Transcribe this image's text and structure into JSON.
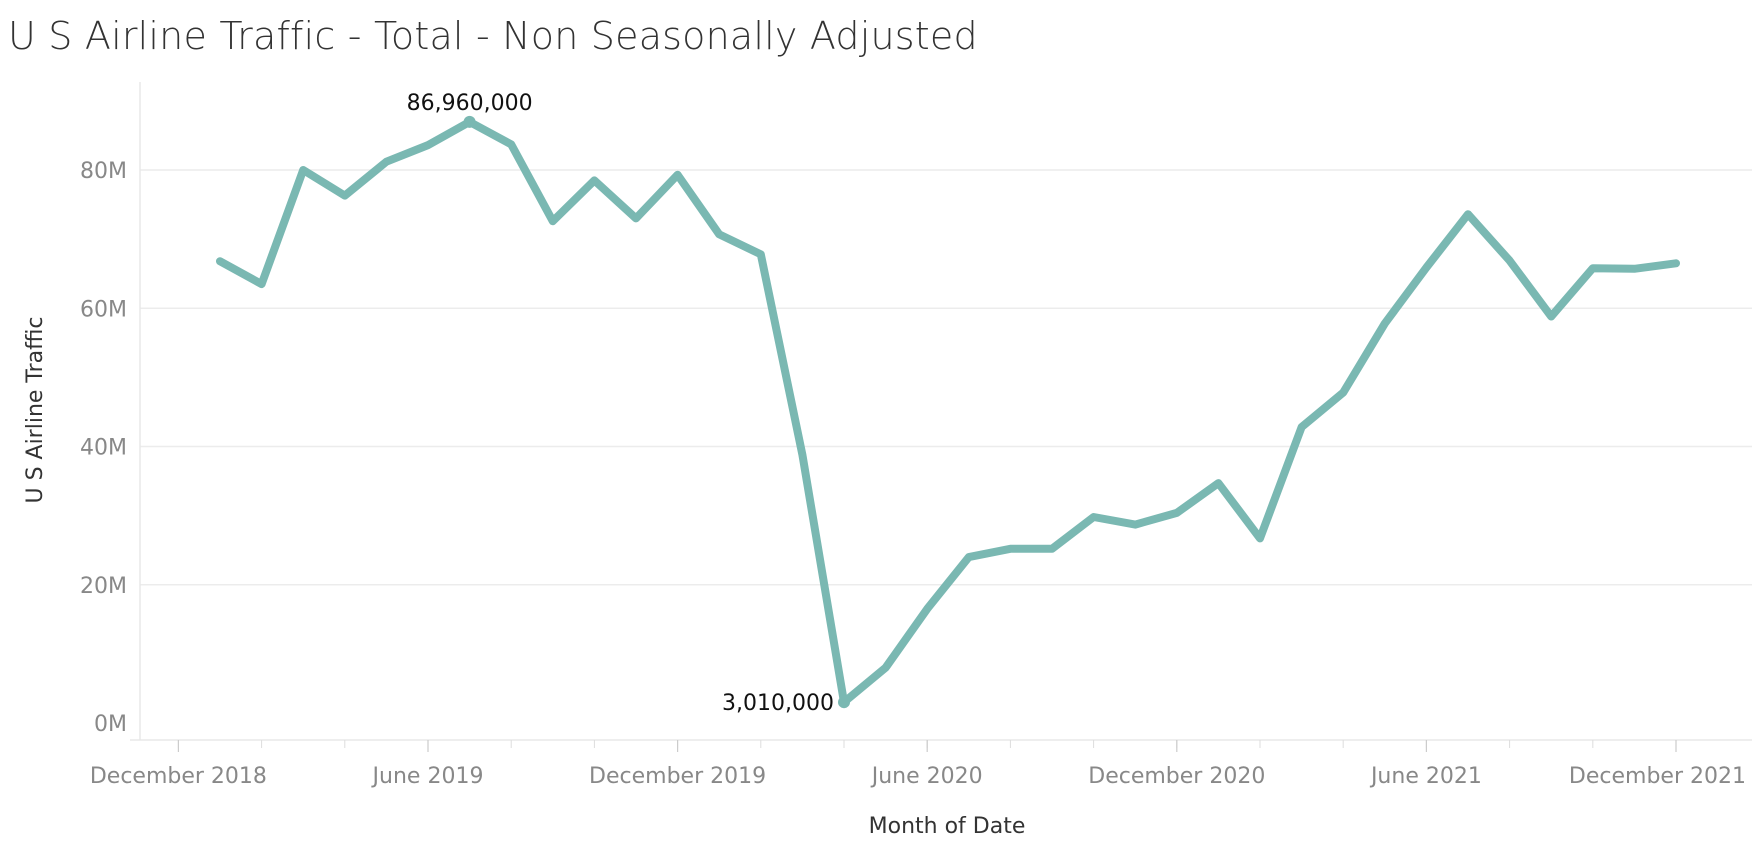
{
  "chart_data": {
    "type": "line",
    "title": "U S Airline Traffic - Total - Non Seasonally Adjusted",
    "xlabel": "Month of Date",
    "ylabel": "U S Airline Traffic",
    "x_tick_labels": [
      {
        "label": "December 2018",
        "date": "2018-12"
      },
      {
        "label": "June 2019",
        "date": "2019-06"
      },
      {
        "label": "December 2019",
        "date": "2019-12"
      },
      {
        "label": "June 2020",
        "date": "2020-06"
      },
      {
        "label": "December 2020",
        "date": "2020-12"
      },
      {
        "label": "June 2021",
        "date": "2021-06"
      },
      {
        "label": "December 2021",
        "date": "2021-12"
      }
    ],
    "y_ticks": [
      {
        "value": 0,
        "label": "0M"
      },
      {
        "value": 20000000,
        "label": "20M"
      },
      {
        "value": 40000000,
        "label": "40M"
      },
      {
        "value": 60000000,
        "label": "60M"
      },
      {
        "value": 80000000,
        "label": "80M"
      }
    ],
    "ylim": [
      0,
      90000000
    ],
    "grid": true,
    "line_color": "#7ab8b2",
    "series": [
      {
        "points": [
          {
            "date": "2019-01",
            "value": 66800000
          },
          {
            "date": "2019-02",
            "value": 63500000
          },
          {
            "date": "2019-03",
            "value": 80000000
          },
          {
            "date": "2019-04",
            "value": 76300000
          },
          {
            "date": "2019-05",
            "value": 81200000
          },
          {
            "date": "2019-06",
            "value": 83600000
          },
          {
            "date": "2019-07",
            "value": 86960000
          },
          {
            "date": "2019-08",
            "value": 83700000
          },
          {
            "date": "2019-09",
            "value": 72600000
          },
          {
            "date": "2019-10",
            "value": 78500000
          },
          {
            "date": "2019-11",
            "value": 73000000
          },
          {
            "date": "2019-12",
            "value": 79300000
          },
          {
            "date": "2020-01",
            "value": 70700000
          },
          {
            "date": "2020-02",
            "value": 67800000
          },
          {
            "date": "2020-03",
            "value": 38800000
          },
          {
            "date": "2020-04",
            "value": 3010000
          },
          {
            "date": "2020-05",
            "value": 8000000
          },
          {
            "date": "2020-06",
            "value": 16500000
          },
          {
            "date": "2020-07",
            "value": 24000000
          },
          {
            "date": "2020-08",
            "value": 25200000
          },
          {
            "date": "2020-09",
            "value": 25200000
          },
          {
            "date": "2020-10",
            "value": 29800000
          },
          {
            "date": "2020-11",
            "value": 28700000
          },
          {
            "date": "2020-12",
            "value": 30400000
          },
          {
            "date": "2021-01",
            "value": 34700000
          },
          {
            "date": "2021-02",
            "value": 26700000
          },
          {
            "date": "2021-03",
            "value": 42800000
          },
          {
            "date": "2021-04",
            "value": 47800000
          },
          {
            "date": "2021-05",
            "value": 57800000
          },
          {
            "date": "2021-06",
            "value": 65900000
          },
          {
            "date": "2021-07",
            "value": 73600000
          },
          {
            "date": "2021-08",
            "value": 66900000
          },
          {
            "date": "2021-09",
            "value": 58800000
          },
          {
            "date": "2021-10",
            "value": 65800000
          },
          {
            "date": "2021-11",
            "value": 65700000
          },
          {
            "date": "2021-12",
            "value": 66500000
          }
        ]
      }
    ],
    "annotations": [
      {
        "date": "2019-07",
        "value": 86960000,
        "text": "86,960,000",
        "placement": "above"
      },
      {
        "date": "2020-04",
        "value": 3010000,
        "text": "3,010,000",
        "placement": "left"
      }
    ]
  }
}
